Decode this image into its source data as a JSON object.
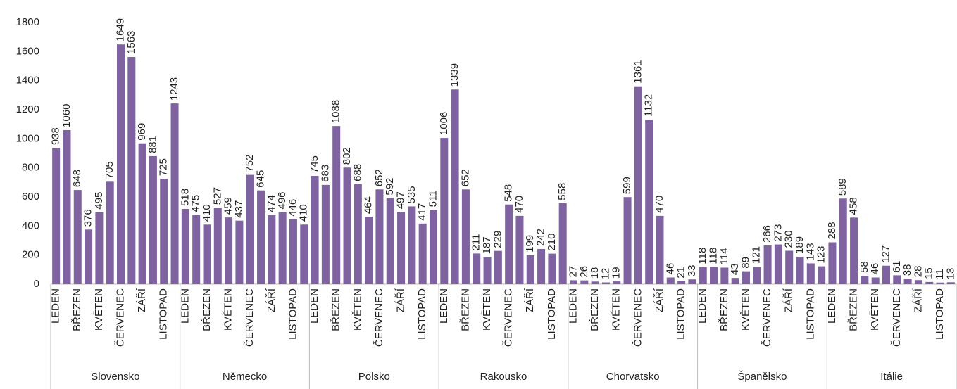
{
  "chart_data": {
    "type": "bar",
    "color": "#7f63a1",
    "categories": [
      "LEDEN",
      null,
      "BŘEZEN",
      null,
      "KVĚTEN",
      null,
      "ČERVENEC",
      null,
      "ZÁŘÍ",
      null,
      "LISTOPAD",
      null
    ],
    "groups": [
      {
        "name": "Slovensko",
        "values": [
          938,
          1060,
          648,
          376,
          495,
          705,
          1649,
          1563,
          969,
          881,
          725,
          1243
        ]
      },
      {
        "name": "Německo",
        "values": [
          518,
          475,
          410,
          527,
          459,
          437,
          752,
          645,
          474,
          496,
          446,
          410
        ]
      },
      {
        "name": "Polsko",
        "values": [
          745,
          683,
          1088,
          802,
          688,
          464,
          652,
          592,
          497,
          535,
          417,
          511
        ]
      },
      {
        "name": "Rakousko",
        "values": [
          1006,
          1339,
          652,
          211,
          187,
          229,
          548,
          470,
          199,
          242,
          210,
          558
        ]
      },
      {
        "name": "Chorvatsko",
        "values": [
          27,
          26,
          18,
          12,
          19,
          599,
          1361,
          1132,
          470,
          46,
          21,
          33
        ]
      },
      {
        "name": "Španělsko",
        "values": [
          118,
          118,
          114,
          43,
          89,
          121,
          266,
          273,
          230,
          189,
          143,
          123
        ]
      },
      {
        "name": "Itálie",
        "values": [
          288,
          589,
          458,
          58,
          46,
          127,
          61,
          38,
          28,
          15,
          11,
          13
        ]
      }
    ],
    "ylim": [
      0,
      1800
    ],
    "yticks": [
      0,
      200,
      400,
      600,
      800,
      1000,
      1200,
      1400,
      1600,
      1800
    ],
    "grid": false
  }
}
